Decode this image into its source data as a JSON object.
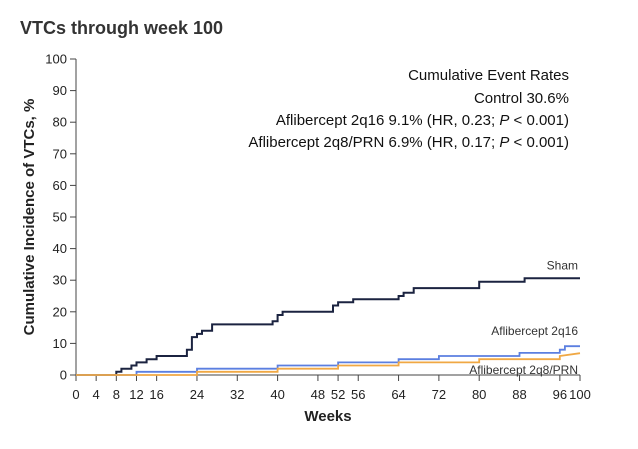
{
  "chart_data": {
    "type": "line",
    "title": "VTCs through week 100",
    "xlabel": "Weeks",
    "ylabel": "Cumulative Incidence of VTCs, %",
    "xlim": [
      0,
      100
    ],
    "ylim": [
      0,
      100
    ],
    "x_ticks": [
      0,
      4,
      8,
      12,
      16,
      24,
      32,
      40,
      48,
      52,
      56,
      64,
      72,
      80,
      88,
      96,
      100
    ],
    "y_ticks": [
      0,
      10,
      20,
      30,
      40,
      50,
      60,
      70,
      80,
      90,
      100
    ],
    "grid": false,
    "annotation": {
      "header": "Cumulative Event Rates",
      "line1": "Control 30.6%",
      "line2_prefix": "Aflibercept 2q16 9.1% (HR, 0.23; ",
      "line3_prefix": "Aflibercept 2q8/PRN 6.9% (HR, 0.17; ",
      "p_symbol": "P",
      "p_suffix": " < 0.001)"
    },
    "series": [
      {
        "name": "Sham",
        "color": "#1b2340",
        "points": [
          [
            0,
            0
          ],
          [
            8,
            0
          ],
          [
            8,
            1
          ],
          [
            9,
            1
          ],
          [
            9,
            2
          ],
          [
            10,
            2
          ],
          [
            11,
            2
          ],
          [
            11,
            3
          ],
          [
            12,
            3
          ],
          [
            12,
            4
          ],
          [
            14,
            4
          ],
          [
            14,
            5
          ],
          [
            16,
            5
          ],
          [
            16,
            6
          ],
          [
            22,
            6
          ],
          [
            22,
            8
          ],
          [
            23,
            8
          ],
          [
            23,
            12
          ],
          [
            24,
            12
          ],
          [
            24,
            13
          ],
          [
            25,
            13
          ],
          [
            25,
            14
          ],
          [
            27,
            14
          ],
          [
            27,
            16
          ],
          [
            39,
            16
          ],
          [
            39,
            17
          ],
          [
            40,
            17
          ],
          [
            40,
            19
          ],
          [
            41,
            19
          ],
          [
            41,
            20
          ],
          [
            51,
            20
          ],
          [
            51,
            22
          ],
          [
            52,
            22
          ],
          [
            52,
            23
          ],
          [
            55,
            23
          ],
          [
            55,
            24
          ],
          [
            64,
            24
          ],
          [
            64,
            25
          ],
          [
            65,
            25
          ],
          [
            65,
            26
          ],
          [
            67,
            26
          ],
          [
            67,
            27.5
          ],
          [
            80,
            27.5
          ],
          [
            80,
            29.5
          ],
          [
            89,
            29.5
          ],
          [
            89,
            30.6
          ],
          [
            100,
            30.6
          ]
        ]
      },
      {
        "name": "Aflibercept 2q16",
        "color": "#5b7fe0",
        "points": [
          [
            0,
            0
          ],
          [
            12,
            0
          ],
          [
            12,
            1
          ],
          [
            24,
            1
          ],
          [
            24,
            2
          ],
          [
            40,
            2
          ],
          [
            40,
            3
          ],
          [
            52,
            3
          ],
          [
            52,
            4
          ],
          [
            64,
            4
          ],
          [
            64,
            5
          ],
          [
            72,
            5
          ],
          [
            72,
            6
          ],
          [
            88,
            6
          ],
          [
            88,
            7
          ],
          [
            96,
            7
          ],
          [
            96,
            8
          ],
          [
            97,
            8
          ],
          [
            97,
            9.1
          ],
          [
            100,
            9.1
          ]
        ]
      },
      {
        "name": "Aflibercept 2q8/PRN",
        "color": "#f0a844",
        "points": [
          [
            0,
            0
          ],
          [
            24,
            0
          ],
          [
            24,
            1
          ],
          [
            40,
            1
          ],
          [
            40,
            2
          ],
          [
            52,
            2
          ],
          [
            52,
            3
          ],
          [
            64,
            3
          ],
          [
            64,
            4
          ],
          [
            80,
            4
          ],
          [
            80,
            5
          ],
          [
            96,
            5
          ],
          [
            96,
            6
          ],
          [
            100,
            6.9
          ]
        ]
      }
    ]
  }
}
